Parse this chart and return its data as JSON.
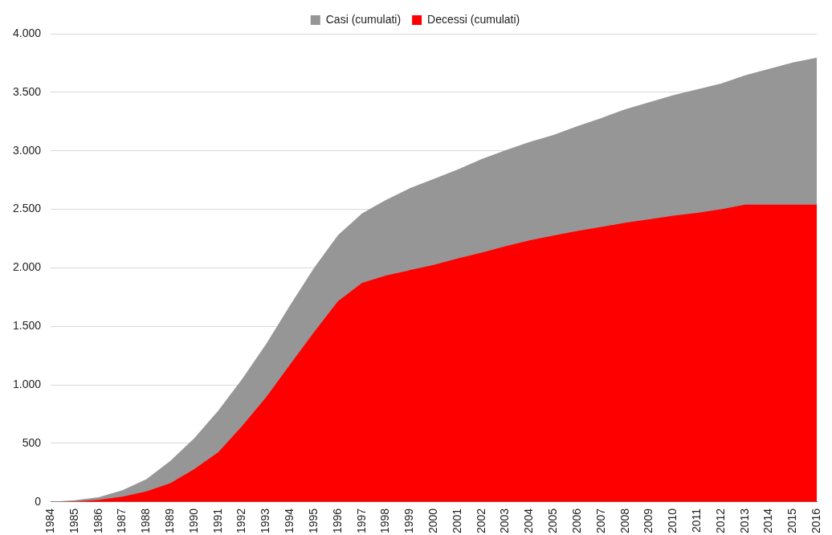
{
  "chart_data": {
    "type": "area",
    "categories": [
      "1984",
      "1985",
      "1986",
      "1987",
      "1988",
      "1989",
      "1990",
      "1991",
      "1992",
      "1993",
      "1994",
      "1995",
      "1996",
      "1997",
      "1998",
      "1999",
      "2000",
      "2001",
      "2002",
      "2003",
      "2004",
      "2005",
      "2006",
      "2007",
      "2008",
      "2009",
      "2010",
      "2011",
      "2012",
      "2013",
      "2014",
      "2015",
      "2016"
    ],
    "series": [
      {
        "name": "Casi (cumulati)",
        "color": "#969696",
        "values": [
          0,
          15,
          40,
          100,
          195,
          350,
          545,
          780,
          1050,
          1350,
          1680,
          2000,
          2280,
          2465,
          2580,
          2680,
          2760,
          2840,
          2930,
          3005,
          3075,
          3135,
          3210,
          3280,
          3355,
          3415,
          3475,
          3525,
          3575,
          3645,
          3700,
          3755,
          3795
        ]
      },
      {
        "name": "Decessi (cumulati)",
        "color": "#ff0000",
        "values": [
          0,
          5,
          18,
          45,
          90,
          160,
          280,
          425,
          650,
          895,
          1175,
          1450,
          1715,
          1870,
          1935,
          1980,
          2025,
          2080,
          2130,
          2185,
          2235,
          2275,
          2315,
          2350,
          2385,
          2415,
          2445,
          2470,
          2500,
          2540,
          2540,
          2540,
          2540
        ]
      }
    ],
    "ylim": [
      0,
      4000
    ],
    "yticks": [
      {
        "value": 0,
        "label": "0"
      },
      {
        "value": 500,
        "label": "500"
      },
      {
        "value": 1000,
        "label": "1.000"
      },
      {
        "value": 1500,
        "label": "1.500"
      },
      {
        "value": 2000,
        "label": "2.000"
      },
      {
        "value": 2500,
        "label": "2.500"
      },
      {
        "value": 3000,
        "label": "3.000"
      },
      {
        "value": 3500,
        "label": "3.500"
      },
      {
        "value": 4000,
        "label": "4.000"
      }
    ],
    "grid": "y",
    "legend": "top"
  }
}
